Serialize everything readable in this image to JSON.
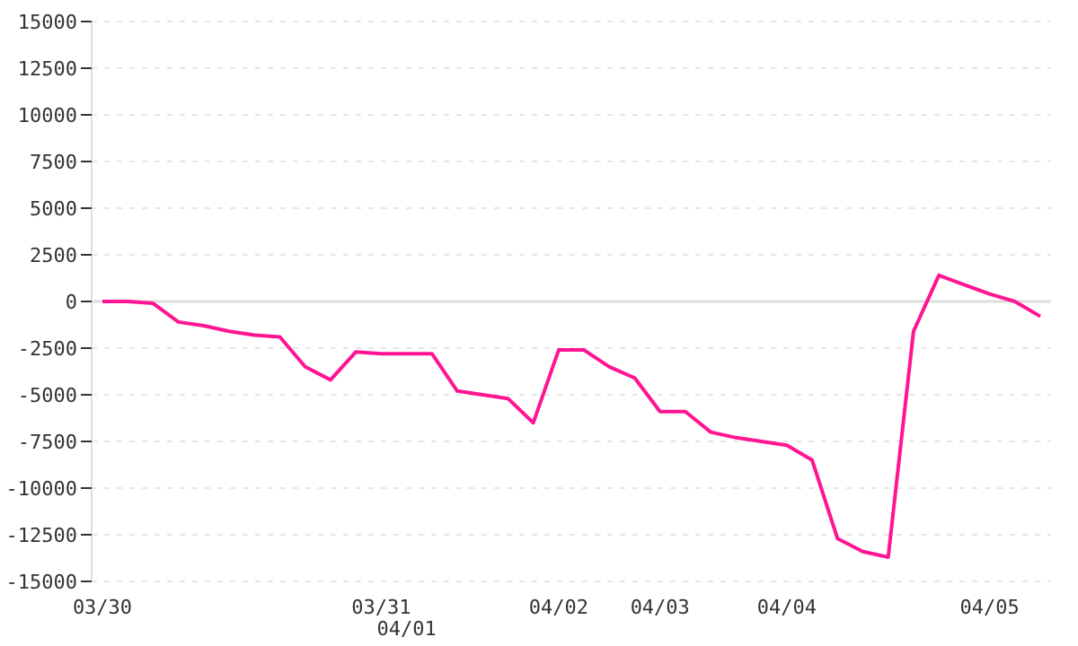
{
  "chart_data": {
    "type": "line",
    "categories": [
      "03/30",
      null,
      null,
      null,
      null,
      null,
      null,
      null,
      null,
      null,
      null,
      "03/31",
      "04/01",
      null,
      null,
      null,
      null,
      null,
      "04/02",
      null,
      null,
      null,
      "04/03",
      null,
      null,
      null,
      null,
      "04/04",
      null,
      null,
      null,
      null,
      null,
      null,
      null,
      "04/05",
      null,
      null
    ],
    "series": [
      {
        "color": "#ff1493",
        "values": [
          0,
          0,
          -100,
          -1100,
          -1300,
          -1600,
          -1800,
          -1900,
          -3500,
          -4200,
          -2700,
          -2800,
          -2800,
          -2800,
          -4800,
          -5000,
          -5200,
          -6500,
          -2600,
          -2600,
          -3500,
          -4100,
          -5900,
          -5900,
          -7000,
          -7300,
          -7500,
          -7700,
          -8500,
          -12700,
          -13400,
          -13700,
          -1600,
          1400,
          900,
          400,
          0,
          -800
        ]
      }
    ],
    "ylim": [
      -15000,
      15000
    ],
    "yticks": [
      -15000,
      -12500,
      -10000,
      -7500,
      -5000,
      -2500,
      0,
      2500,
      5000,
      7500,
      10000,
      12500,
      15000
    ],
    "grid": "y",
    "ref_lines": [
      {
        "axis": "y",
        "value": 0,
        "color": "#dddddd"
      }
    ],
    "legend": false,
    "marker": "none",
    "line_style": "solid"
  }
}
